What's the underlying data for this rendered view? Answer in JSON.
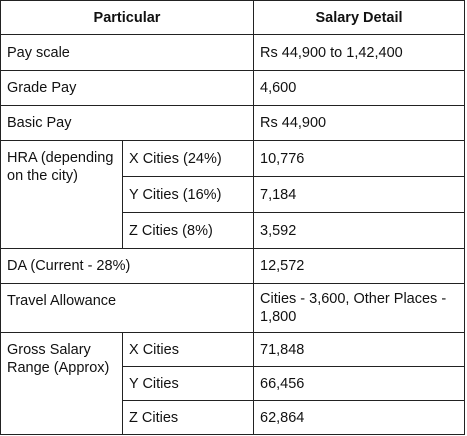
{
  "table": {
    "headers": [
      "Particular",
      "Salary Detail"
    ],
    "pay_scale": {
      "label": "Pay scale",
      "value": "Rs 44,900 to 1,42,400"
    },
    "grade_pay": {
      "label": "Grade Pay",
      "value": "4,600"
    },
    "basic_pay": {
      "label": "Basic Pay",
      "value": "Rs 44,900"
    },
    "hra": {
      "label": "HRA (depending on the city)",
      "rows": [
        {
          "city": "X Cities (24%)",
          "value": "10,776"
        },
        {
          "city": "Y Cities (16%)",
          "value": "7,184"
        },
        {
          "city": "Z Cities (8%)",
          "value": "3,592"
        }
      ]
    },
    "da": {
      "label": "DA (Current - 28%)",
      "value": "12,572"
    },
    "travel": {
      "label": "Travel Allowance",
      "value": "Cities - 3,600, Other Places - 1,800"
    },
    "gross": {
      "label": "Gross Salary Range (Approx)",
      "rows": [
        {
          "city": "X Cities",
          "value": "71,848"
        },
        {
          "city": "Y Cities",
          "value": "66,456"
        },
        {
          "city": "Z Cities",
          "value": "62,864"
        }
      ]
    }
  }
}
